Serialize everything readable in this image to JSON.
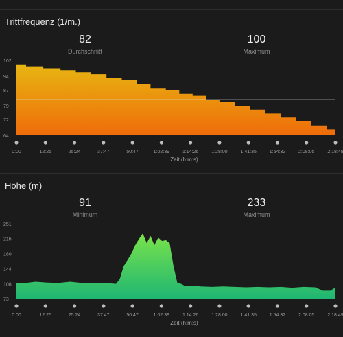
{
  "cadence": {
    "title": "Trittfrequenz (1/m.)",
    "stats": [
      {
        "value": "82",
        "label": "Durchschnitt"
      },
      {
        "value": "100",
        "label": "Maximum"
      }
    ]
  },
  "elevation": {
    "title": "Höhe (m)",
    "stats": [
      {
        "value": "91",
        "label": "Minimum"
      },
      {
        "value": "233",
        "label": "Maximum"
      }
    ]
  },
  "colors": {
    "cadence_top": "#e7b612",
    "cadence_bottom": "#ef6c0a",
    "average_line": "#f2f2f2",
    "elevation_top": "#7ae34a",
    "elevation_bottom": "#1fb673",
    "axis_dot": "#bdbdbd"
  },
  "chart_data": [
    {
      "type": "area",
      "title": "Trittfrequenz (1/m.)",
      "xlabel": "Zeit (h:m:s)",
      "x_ticks": [
        "0:00",
        "12:25",
        "25:24",
        "37:47",
        "50:47",
        "1:02:39",
        "1:14:26",
        "1:28:00",
        "1:41:35",
        "1:54:32",
        "2:08:05",
        "2:18:49"
      ],
      "y_ticks": [
        102,
        94,
        87,
        79,
        72,
        64
      ],
      "ylim": [
        64,
        102
      ],
      "xlim_seconds": [
        0,
        8329
      ],
      "average": 82,
      "x_seconds": [
        0,
        250,
        700,
        1150,
        1550,
        1950,
        2350,
        2750,
        3150,
        3500,
        3900,
        4250,
        4600,
        4950,
        5300,
        5700,
        6100,
        6500,
        6900,
        7300,
        7700,
        8100,
        8329
      ],
      "values": [
        100,
        99,
        98,
        97,
        96,
        95,
        93,
        92,
        90,
        88,
        87,
        85,
        84,
        82,
        81,
        79,
        77,
        75,
        73,
        71,
        69,
        67,
        66
      ]
    },
    {
      "type": "area",
      "title": "Höhe (m)",
      "xlabel": "Zeit (h:m:s)",
      "x_ticks": [
        "0:00",
        "12:25",
        "25:24",
        "37:47",
        "50:47",
        "1:02:39",
        "1:14:26",
        "1:28:00",
        "1:41:35",
        "1:54:32",
        "2:08:05",
        "2:18:49"
      ],
      "y_ticks": [
        251,
        216,
        180,
        144,
        108,
        73
      ],
      "ylim": [
        73,
        251
      ],
      "xlim_seconds": [
        0,
        8329
      ],
      "x_seconds": [
        0,
        250,
        500,
        800,
        1100,
        1400,
        1700,
        2000,
        2300,
        2600,
        2700,
        2800,
        2900,
        3000,
        3100,
        3200,
        3300,
        3400,
        3500,
        3600,
        3700,
        3800,
        3900,
        4000,
        4100,
        4200,
        4300,
        4400,
        4600,
        4800,
        5100,
        5400,
        5700,
        6000,
        6300,
        6600,
        6900,
        7200,
        7500,
        7800,
        8000,
        8200,
        8329
      ],
      "values": [
        109,
        110,
        113,
        111,
        110,
        113,
        110,
        110,
        110,
        108,
        120,
        150,
        165,
        180,
        200,
        215,
        228,
        205,
        222,
        200,
        218,
        210,
        212,
        205,
        150,
        110,
        108,
        103,
        104,
        102,
        101,
        102,
        101,
        100,
        101,
        100,
        101,
        99,
        101,
        100,
        92,
        92,
        100
      ]
    }
  ]
}
